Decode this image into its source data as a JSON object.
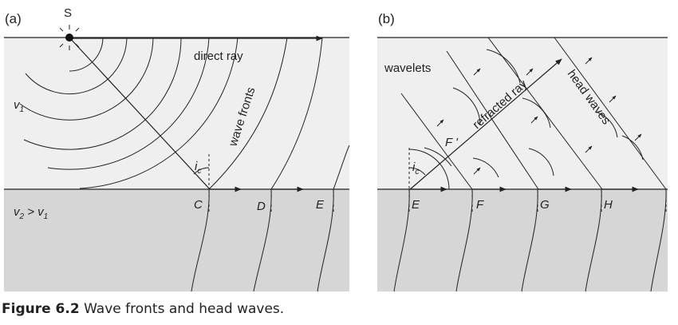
{
  "panel_a": {
    "label": "(a)",
    "source": "S",
    "v1": "v",
    "v1_sub": "1",
    "v2_left": "v",
    "v2_sub": "2",
    "v2_relation": " > v",
    "v2_relation_sub": "1",
    "direct_ray": "direct ray",
    "wave_fronts": "wave fronts",
    "angle": "i",
    "angle_sub": "c",
    "points": [
      "C",
      "D",
      "E"
    ]
  },
  "panel_b": {
    "label": "(b)",
    "wavelets": "wavelets",
    "refracted_ray": "refracted ray",
    "head_waves": "head waves",
    "f_prime": "F '",
    "angle": "i",
    "angle_sub": "c",
    "points": [
      "E",
      "F",
      "G",
      "H"
    ]
  },
  "caption": {
    "figure_no": "Figure 6.2",
    "text": " Wave fronts and head waves."
  },
  "colors": {
    "upper_layer": "#efefef",
    "lower_layer": "#d6d6d6",
    "line": "#222222"
  }
}
